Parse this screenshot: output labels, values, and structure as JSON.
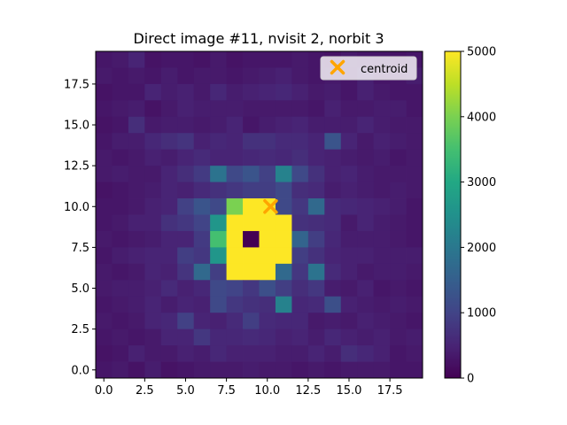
{
  "chart_data": {
    "type": "heatmap",
    "title": "Direct image #11, nvisit 2, norbit 3",
    "xlabel": "",
    "ylabel": "",
    "xlim": [
      -0.5,
      19.5
    ],
    "ylim": [
      -0.5,
      19.5
    ],
    "x_ticks": [
      0.0,
      2.5,
      5.0,
      7.5,
      10.0,
      12.5,
      15.0,
      17.5
    ],
    "x_tick_labels": [
      "0.0",
      "2.5",
      "5.0",
      "7.5",
      "10.0",
      "12.5",
      "15.0",
      "17.5"
    ],
    "y_ticks": [
      0.0,
      2.5,
      5.0,
      7.5,
      10.0,
      12.5,
      15.0,
      17.5
    ],
    "y_tick_labels": [
      "0.0",
      "2.5",
      "5.0",
      "7.5",
      "10.0",
      "12.5",
      "15.0",
      "17.5"
    ],
    "colormap": "viridis",
    "vmin": 0,
    "vmax": 5000,
    "colorbar_ticks": [
      0,
      1000,
      2000,
      3000,
      4000,
      5000
    ],
    "colorbar_tick_labels": [
      "0",
      "1000",
      "2000",
      "3000",
      "4000",
      "5000"
    ],
    "grid_note": "rows listed from y=19 (top) down to y=0 (bottom), columns x=0..19",
    "values": [
      [
        300,
        350,
        500,
        250,
        300,
        300,
        250,
        350,
        250,
        300,
        300,
        300,
        350,
        300,
        250,
        350,
        300,
        300,
        250,
        300
      ],
      [
        350,
        300,
        350,
        300,
        400,
        300,
        350,
        350,
        300,
        350,
        400,
        450,
        350,
        300,
        350,
        300,
        450,
        300,
        300,
        400
      ],
      [
        250,
        300,
        300,
        500,
        400,
        450,
        350,
        550,
        400,
        450,
        500,
        550,
        450,
        350,
        400,
        300,
        450,
        350,
        300,
        300
      ],
      [
        300,
        350,
        400,
        250,
        350,
        450,
        400,
        400,
        400,
        350,
        350,
        350,
        350,
        300,
        450,
        350,
        350,
        400,
        400,
        300
      ],
      [
        250,
        300,
        650,
        350,
        400,
        400,
        350,
        400,
        500,
        300,
        400,
        450,
        500,
        400,
        400,
        400,
        500,
        400,
        350,
        350
      ],
      [
        300,
        400,
        400,
        550,
        650,
        750,
        450,
        550,
        500,
        700,
        700,
        600,
        600,
        500,
        1300,
        500,
        350,
        450,
        400,
        350
      ],
      [
        350,
        300,
        350,
        450,
        400,
        500,
        600,
        500,
        500,
        550,
        600,
        550,
        650,
        500,
        450,
        400,
        350,
        400,
        300,
        350
      ],
      [
        350,
        400,
        350,
        350,
        500,
        650,
        850,
        1900,
        1100,
        1300,
        950,
        2200,
        1100,
        700,
        450,
        500,
        400,
        350,
        350,
        350
      ],
      [
        250,
        300,
        350,
        400,
        500,
        450,
        600,
        700,
        800,
        900,
        900,
        1100,
        650,
        600,
        400,
        450,
        400,
        350,
        400,
        350
      ],
      [
        300,
        300,
        350,
        450,
        500,
        950,
        1300,
        1100,
        4000,
        5000,
        5000,
        1100,
        800,
        1700,
        600,
        550,
        500,
        450,
        400,
        300
      ],
      [
        300,
        350,
        450,
        450,
        700,
        800,
        1000,
        2600,
        5000,
        5000,
        5000,
        5000,
        700,
        650,
        600,
        350,
        500,
        400,
        350,
        300
      ],
      [
        350,
        300,
        350,
        400,
        500,
        500,
        850,
        3500,
        5000,
        0,
        5000,
        5000,
        1600,
        900,
        550,
        400,
        400,
        400,
        350,
        300
      ],
      [
        300,
        400,
        450,
        500,
        500,
        900,
        800,
        2600,
        5000,
        5000,
        5000,
        5000,
        900,
        700,
        500,
        450,
        450,
        400,
        400,
        400
      ],
      [
        350,
        300,
        350,
        500,
        450,
        750,
        1700,
        900,
        5000,
        5000,
        5000,
        1700,
        800,
        1900,
        600,
        450,
        350,
        400,
        400,
        350
      ],
      [
        350,
        400,
        400,
        450,
        600,
        450,
        550,
        1100,
        1000,
        800,
        1200,
        900,
        650,
        800,
        400,
        350,
        450,
        300,
        350,
        300
      ],
      [
        300,
        350,
        400,
        500,
        400,
        500,
        450,
        1100,
        800,
        700,
        650,
        2200,
        550,
        600,
        1200,
        450,
        400,
        350,
        400,
        350
      ],
      [
        350,
        300,
        350,
        500,
        550,
        950,
        500,
        450,
        600,
        900,
        600,
        550,
        550,
        350,
        400,
        350,
        450,
        400,
        350,
        300
      ],
      [
        300,
        350,
        300,
        350,
        500,
        500,
        800,
        550,
        550,
        600,
        550,
        450,
        500,
        400,
        550,
        450,
        400,
        450,
        350,
        400
      ],
      [
        250,
        300,
        450,
        350,
        350,
        450,
        400,
        550,
        450,
        450,
        450,
        400,
        400,
        500,
        400,
        650,
        550,
        450,
        300,
        350
      ],
      [
        300,
        350,
        250,
        400,
        250,
        300,
        350,
        350,
        350,
        400,
        350,
        350,
        300,
        350,
        300,
        350,
        350,
        350,
        300,
        300
      ]
    ],
    "markers": [
      {
        "name": "centroid",
        "x": 10.2,
        "y": 10.0,
        "symbol": "x",
        "color": "#FFA500"
      }
    ],
    "legend_position": "upper right",
    "legend_labels": [
      "centroid"
    ]
  }
}
